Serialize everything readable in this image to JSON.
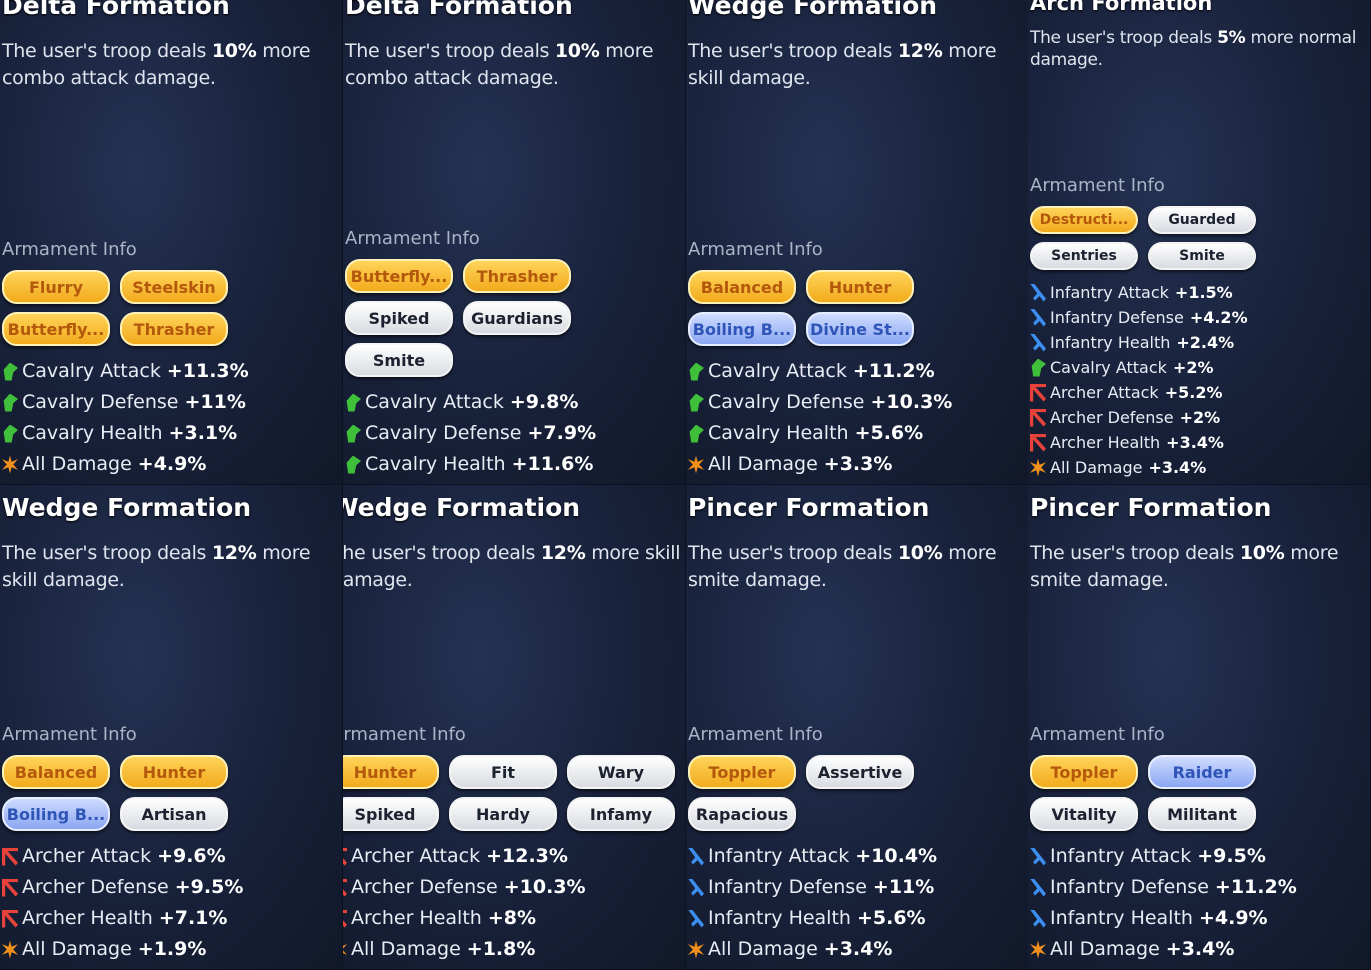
{
  "panels": [
    {
      "title": "Delta Formation",
      "description": {
        "before": "The user's troop deals ",
        "highlight": "10%",
        "after": " more combo attack damage."
      },
      "armament_label": "Armament Info",
      "tags": [
        {
          "text": "Flurry",
          "style": "gold"
        },
        {
          "text": "Steelskin",
          "style": "gold"
        },
        {
          "text": "Butterfly...",
          "style": "gold"
        },
        {
          "text": "Thrasher",
          "style": "gold"
        }
      ],
      "stats": [
        {
          "icon": "cavalry",
          "label": "Cavalry Attack",
          "value": "+11.3%"
        },
        {
          "icon": "cavalry",
          "label": "Cavalry Defense",
          "value": "+11%"
        },
        {
          "icon": "cavalry",
          "label": "Cavalry Health",
          "value": "+3.1%"
        },
        {
          "icon": "all",
          "label": "All Damage",
          "value": "+4.9%"
        }
      ]
    },
    {
      "title": "Delta Formation",
      "description": {
        "before": "The user's troop deals ",
        "highlight": "10%",
        "after": " more combo attack damage."
      },
      "armament_label": "Armament Info",
      "tags": [
        {
          "text": "Butterfly...",
          "style": "gold"
        },
        {
          "text": "Thrasher",
          "style": "gold"
        },
        {
          "text": "Spiked",
          "style": "white"
        },
        {
          "text": "Guardians",
          "style": "white"
        },
        {
          "text": "Smite",
          "style": "white"
        }
      ],
      "stats": [
        {
          "icon": "cavalry",
          "label": "Cavalry Attack",
          "value": "+9.8%"
        },
        {
          "icon": "cavalry",
          "label": "Cavalry Defense",
          "value": "+7.9%"
        },
        {
          "icon": "cavalry",
          "label": "Cavalry Health",
          "value": "+11.6%"
        }
      ]
    },
    {
      "title": "Wedge Formation",
      "description": {
        "before": "The user's troop deals ",
        "highlight": "12%",
        "after": " more skill damage."
      },
      "armament_label": "Armament Info",
      "tags": [
        {
          "text": "Balanced",
          "style": "gold"
        },
        {
          "text": "Hunter",
          "style": "gold"
        },
        {
          "text": "Boiling B...",
          "style": "blue"
        },
        {
          "text": "Divine St...",
          "style": "blue"
        }
      ],
      "stats": [
        {
          "icon": "cavalry",
          "label": "Cavalry Attack",
          "value": "+11.2%"
        },
        {
          "icon": "cavalry",
          "label": "Cavalry Defense",
          "value": "+10.3%"
        },
        {
          "icon": "cavalry",
          "label": "Cavalry Health",
          "value": "+5.6%"
        },
        {
          "icon": "all",
          "label": "All Damage",
          "value": "+3.3%"
        }
      ]
    },
    {
      "title": "Arch Formation",
      "description": {
        "before": "The user's troop deals ",
        "highlight": "5%",
        "after": " more normal damage."
      },
      "armament_label": "Armament Info",
      "tags": [
        {
          "text": "Destructi...",
          "style": "gold"
        },
        {
          "text": "Guarded",
          "style": "white"
        },
        {
          "text": "Sentries",
          "style": "white"
        },
        {
          "text": "Smite",
          "style": "white"
        }
      ],
      "stats": [
        {
          "icon": "infantry",
          "label": "Infantry Attack",
          "value": "+1.5%"
        },
        {
          "icon": "infantry",
          "label": "Infantry Defense",
          "value": "+4.2%"
        },
        {
          "icon": "infantry",
          "label": "Infantry Health",
          "value": "+2.4%"
        },
        {
          "icon": "cavalry",
          "label": "Cavalry Attack",
          "value": "+2%"
        },
        {
          "icon": "archer",
          "label": "Archer Attack",
          "value": "+5.2%"
        },
        {
          "icon": "archer",
          "label": "Archer Defense",
          "value": "+2%"
        },
        {
          "icon": "archer",
          "label": "Archer Health",
          "value": "+3.4%"
        },
        {
          "icon": "all",
          "label": "All Damage",
          "value": "+3.4%"
        }
      ]
    },
    {
      "title": "Wedge Formation",
      "description": {
        "before": "The user's troop deals ",
        "highlight": "12%",
        "after": " more skill damage."
      },
      "armament_label": "Armament Info",
      "tags": [
        {
          "text": "Balanced",
          "style": "gold"
        },
        {
          "text": "Hunter",
          "style": "gold"
        },
        {
          "text": "Boiling B...",
          "style": "blue"
        },
        {
          "text": "Artisan",
          "style": "white"
        }
      ],
      "stats": [
        {
          "icon": "archer",
          "label": "Archer Attack",
          "value": "+9.6%"
        },
        {
          "icon": "archer",
          "label": "Archer Defense",
          "value": "+9.5%"
        },
        {
          "icon": "archer",
          "label": "Archer Health",
          "value": "+7.1%"
        },
        {
          "icon": "all",
          "label": "All Damage",
          "value": "+1.9%"
        }
      ]
    },
    {
      "title": "Wedge Formation",
      "description": {
        "before": "The user's troop deals ",
        "highlight": "12%",
        "after": " more skill damage."
      },
      "armament_label": "Armament Info",
      "tags": [
        {
          "text": "Hunter",
          "style": "gold"
        },
        {
          "text": "Fit",
          "style": "white"
        },
        {
          "text": "Wary",
          "style": "white"
        },
        {
          "text": "Spiked",
          "style": "white"
        },
        {
          "text": "Hardy",
          "style": "white"
        },
        {
          "text": "Infamy",
          "style": "white"
        }
      ],
      "stats": [
        {
          "icon": "archer",
          "label": "Archer Attack",
          "value": "+12.3%"
        },
        {
          "icon": "archer",
          "label": "Archer Defense",
          "value": "+10.3%"
        },
        {
          "icon": "archer",
          "label": "Archer Health",
          "value": "+8%"
        },
        {
          "icon": "all",
          "label": "All Damage",
          "value": "+1.8%"
        }
      ]
    },
    {
      "title": "Pincer Formation",
      "description": {
        "before": "The user's troop deals ",
        "highlight": "10%",
        "after": " more smite damage."
      },
      "armament_label": "Armament Info",
      "tags": [
        {
          "text": "Toppler",
          "style": "gold"
        },
        {
          "text": "Assertive",
          "style": "white"
        },
        {
          "text": "Rapacious",
          "style": "white"
        }
      ],
      "stats": [
        {
          "icon": "infantry",
          "label": "Infantry Attack",
          "value": "+10.4%"
        },
        {
          "icon": "infantry",
          "label": "Infantry Defense",
          "value": "+11%"
        },
        {
          "icon": "infantry",
          "label": "Infantry Health",
          "value": "+5.6%"
        },
        {
          "icon": "all",
          "label": "All Damage",
          "value": "+3.4%"
        }
      ]
    },
    {
      "title": "Pincer Formation",
      "description": {
        "before": "The user's troop deals ",
        "highlight": "10%",
        "after": " more smite damage."
      },
      "armament_label": "Armament Info",
      "tags": [
        {
          "text": "Toppler",
          "style": "gold"
        },
        {
          "text": "Raider",
          "style": "blue"
        },
        {
          "text": "Vitality",
          "style": "white"
        },
        {
          "text": "Militant",
          "style": "white"
        }
      ],
      "stats": [
        {
          "icon": "infantry",
          "label": "Infantry Attack",
          "value": "+9.5%"
        },
        {
          "icon": "infantry",
          "label": "Infantry Defense",
          "value": "+11.2%"
        },
        {
          "icon": "infantry",
          "label": "Infantry Health",
          "value": "+4.9%"
        },
        {
          "icon": "all",
          "label": "All Damage",
          "value": "+3.4%"
        }
      ]
    }
  ]
}
